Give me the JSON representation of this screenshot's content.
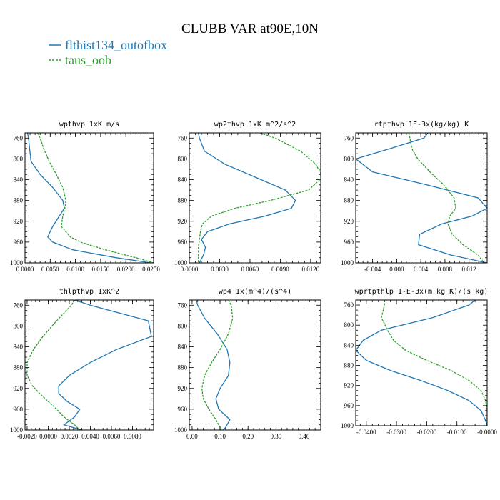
{
  "figure_title": "CLUBB VAR at90E,10N",
  "legend": [
    {
      "name": "flthist134_outofbox",
      "color": "#1f77b4",
      "style": "solid"
    },
    {
      "name": "taus_oob",
      "color": "#2ca02c",
      "style": "dashed"
    }
  ],
  "chart_data": [
    {
      "type": "line",
      "title": "wpthvp  1xK m/s",
      "xlim": [
        0,
        0.0255
      ],
      "ylim": [
        1000,
        750
      ],
      "xticks": [
        0,
        0.005,
        0.01,
        0.015,
        0.02,
        0.025
      ],
      "xtick_labels": [
        "0.0000",
        "0.0050",
        "0.0100",
        "0.0150",
        "0.0200",
        "0.0250"
      ],
      "yticks": [
        760,
        800,
        840,
        880,
        920,
        960,
        1000
      ],
      "ytick_labels": [
        "760",
        "800",
        "840",
        "880",
        "920",
        "960",
        "1000"
      ],
      "y": [
        750,
        760,
        780,
        805,
        830,
        855,
        880,
        895,
        910,
        930,
        950,
        960,
        975,
        990,
        1000
      ],
      "series": [
        {
          "name": "flthist134_outofbox",
          "x": [
            0.0005,
            0.0007,
            0.0009,
            0.0012,
            0.003,
            0.0055,
            0.0075,
            0.0078,
            0.0068,
            0.0055,
            0.0045,
            0.0055,
            0.0095,
            0.018,
            0.025
          ]
        },
        {
          "name": "taus_oob",
          "x": [
            0.0025,
            0.003,
            0.0037,
            0.0048,
            0.0062,
            0.0075,
            0.0081,
            0.0079,
            0.0075,
            0.0072,
            0.009,
            0.011,
            0.016,
            0.022,
            0.0255
          ]
        }
      ]
    },
    {
      "type": "line",
      "title": "wp2thvp  1xK m^2/s^2",
      "xlim": [
        0,
        0.013
      ],
      "ylim": [
        1000,
        750
      ],
      "xticks": [
        0,
        0.003,
        0.006,
        0.009,
        0.012
      ],
      "xtick_labels": [
        "0.0000",
        "0.0030",
        "0.0060",
        "0.0090",
        "0.0120"
      ],
      "yticks": [
        760,
        800,
        840,
        880,
        920,
        960,
        1000
      ],
      "ytick_labels": [
        "760",
        "800",
        "840",
        "880",
        "920",
        "960",
        "1000"
      ],
      "y": [
        750,
        760,
        785,
        810,
        835,
        860,
        880,
        895,
        910,
        925,
        940,
        955,
        970,
        985,
        1000
      ],
      "series": [
        {
          "name": "flthist134_outofbox",
          "x": [
            0.0009,
            0.001,
            0.0015,
            0.0035,
            0.0065,
            0.0095,
            0.0105,
            0.0101,
            0.0075,
            0.004,
            0.0018,
            0.0012,
            0.0016,
            0.0014,
            0.001
          ]
        },
        {
          "name": "taus_oob",
          "x": [
            0.007,
            0.0085,
            0.011,
            0.0125,
            0.0132,
            0.0118,
            0.008,
            0.0045,
            0.0022,
            0.0013,
            0.0011,
            0.001,
            0.0009,
            0.0009,
            0.0009
          ]
        }
      ]
    },
    {
      "type": "line",
      "title": "rtpthvp  1E-3x(kg/kg) K",
      "xlim": [
        -0.0068,
        0.015
      ],
      "ylim": [
        1000,
        750
      ],
      "xticks": [
        -0.004,
        0,
        0.004,
        0.008,
        0.012
      ],
      "xtick_labels": [
        "-0.004",
        "0.000",
        "0.004",
        "0.008",
        "0.012"
      ],
      "yticks": [
        760,
        800,
        840,
        880,
        920,
        960,
        1000
      ],
      "ytick_labels": [
        "760",
        "800",
        "840",
        "880",
        "920",
        "960",
        "1000"
      ],
      "y": [
        750,
        760,
        780,
        800,
        825,
        850,
        875,
        895,
        910,
        925,
        945,
        965,
        985,
        1000
      ],
      "series": [
        {
          "name": "flthist134_outofbox",
          "x": [
            0.0052,
            0.0045,
            -0.001,
            -0.0068,
            -0.004,
            0.005,
            0.0135,
            0.015,
            0.0125,
            0.0075,
            0.0038,
            0.0036,
            0.009,
            0.015
          ]
        },
        {
          "name": "taus_oob",
          "x": [
            0.002,
            0.0022,
            0.0025,
            0.0035,
            0.0055,
            0.0078,
            0.0095,
            0.0098,
            0.0088,
            0.0085,
            0.0092,
            0.011,
            0.0135,
            0.0145
          ]
        }
      ]
    },
    {
      "type": "line",
      "title": "thlpthvp  1xK^2",
      "xlim": [
        -0.0022,
        0.01
      ],
      "ylim": [
        1000,
        750
      ],
      "xticks": [
        -0.002,
        0,
        0.002,
        0.004,
        0.006,
        0.008
      ],
      "xtick_labels": [
        "-0.0020",
        "0.0000",
        "0.0020",
        "0.0040",
        "0.0060",
        "0.0080"
      ],
      "yticks": [
        760,
        800,
        840,
        880,
        920,
        960,
        1000
      ],
      "ytick_labels": [
        "760",
        "800",
        "840",
        "880",
        "920",
        "960",
        "1000"
      ],
      "y": [
        750,
        760,
        790,
        820,
        845,
        870,
        895,
        915,
        930,
        945,
        960,
        975,
        990,
        1000
      ],
      "series": [
        {
          "name": "flthist134_outofbox",
          "x": [
            0.0025,
            0.004,
            0.0095,
            0.0098,
            0.0065,
            0.004,
            0.002,
            0.001,
            0.001,
            0.0018,
            0.003,
            0.0025,
            0.0015,
            0.0032
          ]
        },
        {
          "name": "taus_oob",
          "x": [
            0.0025,
            0.0022,
            0.0008,
            -0.0005,
            -0.0014,
            -0.002,
            -0.002,
            -0.0015,
            -0.0008,
            0,
            0.0008,
            0.0015,
            0.0025,
            0.003
          ]
        }
      ]
    },
    {
      "type": "line",
      "title": "wp4  1x(m^4)/(s^4)",
      "xlim": [
        -0.01,
        0.46
      ],
      "ylim": [
        1000,
        750
      ],
      "xticks": [
        0,
        0.1,
        0.2,
        0.3,
        0.4
      ],
      "xtick_labels": [
        "0.00",
        "0.10",
        "0.20",
        "0.30",
        "0.40"
      ],
      "yticks": [
        760,
        800,
        840,
        880,
        920,
        960,
        1000
      ],
      "ytick_labels": [
        "760",
        "800",
        "840",
        "880",
        "920",
        "960",
        "1000"
      ],
      "y": [
        750,
        760,
        785,
        815,
        845,
        870,
        895,
        920,
        940,
        960,
        980,
        995,
        1000
      ],
      "series": [
        {
          "name": "flthist134_outofbox",
          "x": [
            0.015,
            0.02,
            0.045,
            0.09,
            0.125,
            0.135,
            0.13,
            0.1,
            0.085,
            0.095,
            0.135,
            0.12,
            0.11
          ]
        },
        {
          "name": "taus_oob",
          "x": [
            0.13,
            0.14,
            0.145,
            0.13,
            0.1,
            0.07,
            0.045,
            0.035,
            0.04,
            0.06,
            0.085,
            0.1,
            0.1
          ]
        }
      ]
    },
    {
      "type": "line",
      "title": "wprtpthlp  1-E-3x(m kg K)/(s kg)",
      "xlim": [
        -0.0435,
        0
      ],
      "ylim": [
        1000,
        750
      ],
      "xticks": [
        -0.04,
        -0.03,
        -0.02,
        -0.01,
        0
      ],
      "xtick_labels": [
        "-0.0400",
        "-0.0300",
        "-0.0200",
        "-0.0100",
        "-0.0000"
      ],
      "yticks": [
        760,
        800,
        840,
        880,
        920,
        960,
        1000
      ],
      "ytick_labels": [
        "760",
        "800",
        "840",
        "880",
        "920",
        "960",
        "1000"
      ],
      "y": [
        750,
        760,
        785,
        810,
        830,
        850,
        870,
        890,
        910,
        930,
        950,
        970,
        990,
        1000
      ],
      "series": [
        {
          "name": "flthist134_outofbox",
          "x": [
            -0.004,
            -0.006,
            -0.018,
            -0.035,
            -0.041,
            -0.0435,
            -0.04,
            -0.032,
            -0.022,
            -0.013,
            -0.006,
            -0.002,
            -0.0005,
            0
          ]
        },
        {
          "name": "taus_oob",
          "x": [
            -0.034,
            -0.034,
            -0.035,
            -0.033,
            -0.031,
            -0.027,
            -0.02,
            -0.012,
            -0.006,
            -0.002,
            -0.0005,
            0,
            0,
            0
          ]
        }
      ]
    }
  ]
}
